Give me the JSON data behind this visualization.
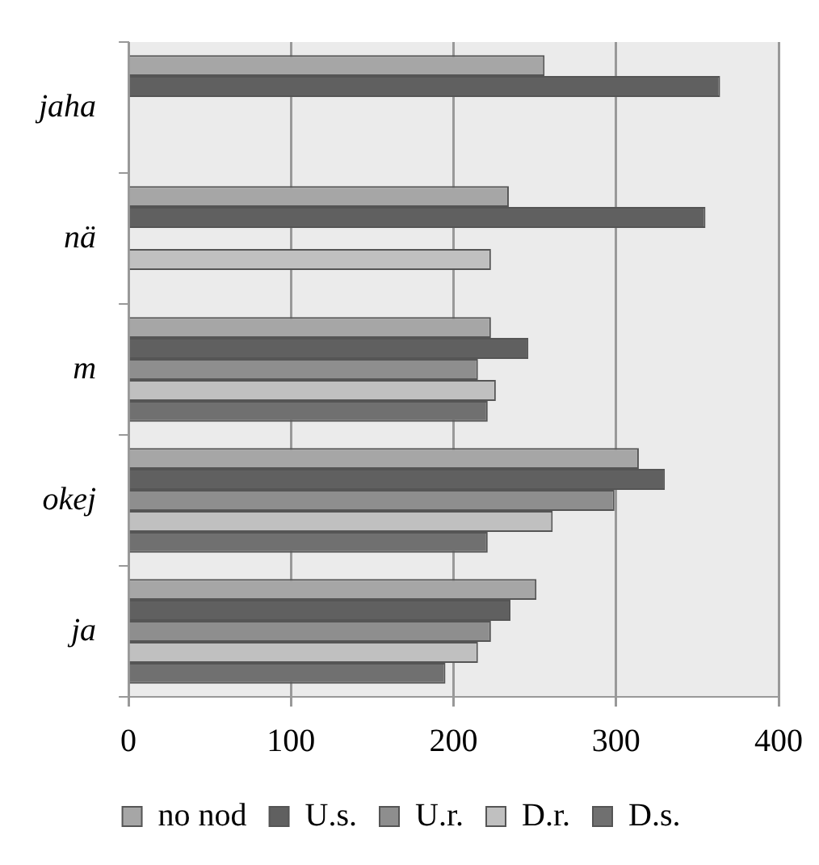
{
  "chart_data": {
    "type": "bar",
    "orientation": "horizontal",
    "categories": [
      "jaha",
      "nä",
      "m",
      "okej",
      "ja"
    ],
    "series": [
      {
        "name": "no nod",
        "color": "#a6a6a6",
        "values": [
          256,
          234,
          223,
          314,
          251
        ]
      },
      {
        "name": "U.s.",
        "color": "#606060",
        "values": [
          364,
          355,
          246,
          330,
          235
        ]
      },
      {
        "name": "U.r.",
        "color": "#8e8e8e",
        "values": [
          null,
          null,
          215,
          299,
          223
        ]
      },
      {
        "name": "D.r.",
        "color": "#c0c0c0",
        "values": [
          null,
          223,
          226,
          261,
          215
        ]
      },
      {
        "name": "D.s.",
        "color": "#707070",
        "values": [
          null,
          null,
          221,
          221,
          195
        ]
      }
    ],
    "xlim": [
      0,
      400
    ],
    "xticks": [
      0,
      100,
      200,
      300,
      400
    ],
    "grid": "x",
    "legend": "bottom"
  }
}
